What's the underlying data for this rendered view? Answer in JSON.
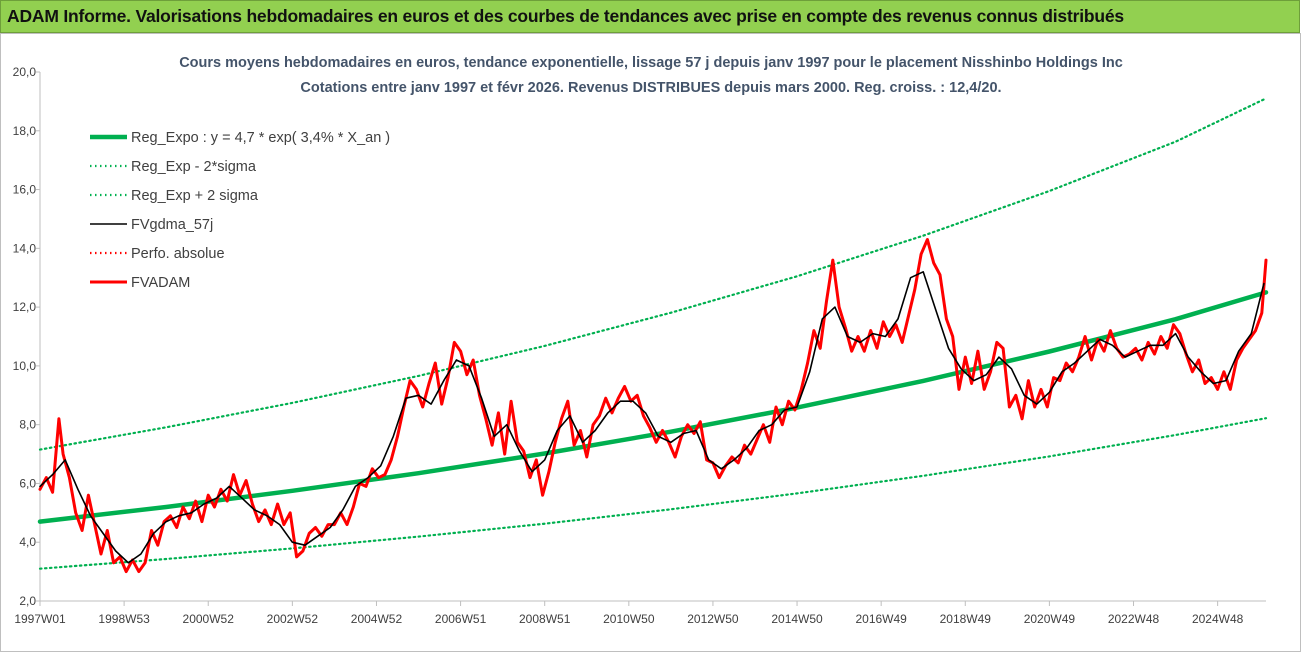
{
  "banner": {
    "title": "ADAM Informe. Valorisations hebdomadaires en euros et des courbes de tendances avec prise en compte des revenus connus distribués",
    "color": "#92d050"
  },
  "chart_data": {
    "type": "line",
    "title": "Cours moyens hebdomadaires en euros, tendance exponentielle, lissage 57 j depuis janv 1997 pour le placement Nisshinbo Holdings Inc",
    "subtitle": "Cotations entre janv 1997 et févr 2026. Revenus DISTRIBUES depuis mars 2000. Reg. croiss. : 12,4/20.",
    "xlabel": "",
    "ylabel": "",
    "x_range": [
      1997.0,
      2026.15
    ],
    "ylim": [
      2,
      20
    ],
    "y_ticks": [
      "2,0",
      "4,0",
      "6,0",
      "8,0",
      "10,0",
      "12,0",
      "14,0",
      "16,0",
      "18,0",
      "20,0"
    ],
    "x_ticks": [
      {
        "label": "1997W01",
        "x": 1997.0
      },
      {
        "label": "1998W53",
        "x": 1999.0
      },
      {
        "label": "2000W52",
        "x": 2001.0
      },
      {
        "label": "2002W52",
        "x": 2003.0
      },
      {
        "label": "2004W52",
        "x": 2005.0
      },
      {
        "label": "2006W51",
        "x": 2007.0
      },
      {
        "label": "2008W51",
        "x": 2009.0
      },
      {
        "label": "2010W50",
        "x": 2011.0
      },
      {
        "label": "2012W50",
        "x": 2013.0
      },
      {
        "label": "2014W50",
        "x": 2015.0
      },
      {
        "label": "2016W49",
        "x": 2017.0
      },
      {
        "label": "2018W49",
        "x": 2019.0
      },
      {
        "label": "2020W49",
        "x": 2021.0
      },
      {
        "label": "2022W48",
        "x": 2023.0
      },
      {
        "label": "2024W48",
        "x": 2025.0
      }
    ],
    "grid": false,
    "legend_position": "top-left",
    "series": [
      {
        "name": "Reg_Expo : y = 4,7 * exp( 3,4% *  X_an )",
        "color": "#00b050",
        "style": "solid-thick",
        "x": [
          1997.0,
          2000.0,
          2003.0,
          2006.0,
          2009.0,
          2012.0,
          2015.0,
          2018.0,
          2021.0,
          2024.0,
          2026.15
        ],
        "y": [
          4.7,
          5.2,
          5.75,
          6.35,
          7.02,
          7.76,
          8.58,
          9.49,
          10.49,
          11.59,
          12.5
        ]
      },
      {
        "name": "Reg_Exp - 2*sigma",
        "color": "#00b050",
        "style": "dotted",
        "x": [
          1997.0,
          2000.0,
          2003.0,
          2006.0,
          2009.0,
          2012.0,
          2015.0,
          2018.0,
          2021.0,
          2024.0,
          2026.15
        ],
        "y": [
          3.1,
          3.43,
          3.79,
          4.19,
          4.63,
          5.12,
          5.66,
          6.26,
          6.92,
          7.65,
          8.22
        ]
      },
      {
        "name": "Reg_Exp + 2 sigma",
        "color": "#00b050",
        "style": "dotted",
        "x": [
          1997.0,
          2000.0,
          2003.0,
          2006.0,
          2009.0,
          2012.0,
          2015.0,
          2018.0,
          2021.0,
          2024.0,
          2026.15
        ],
        "y": [
          7.15,
          7.91,
          8.74,
          9.66,
          10.68,
          11.81,
          13.05,
          14.43,
          15.95,
          17.63,
          19.1
        ]
      },
      {
        "name": "FVgdma_57j",
        "color": "#000000",
        "style": "solid",
        "x": [
          1997.0,
          1997.3,
          1997.6,
          1997.9,
          1998.2,
          1998.5,
          1998.8,
          1999.1,
          1999.4,
          1999.7,
          2000.0,
          2000.3,
          2000.6,
          2000.9,
          2001.2,
          2001.5,
          2001.8,
          2002.1,
          2002.4,
          2002.7,
          2003.0,
          2003.3,
          2003.6,
          2003.9,
          2004.2,
          2004.5,
          2004.8,
          2005.1,
          2005.4,
          2005.7,
          2006.0,
          2006.3,
          2006.6,
          2006.9,
          2007.2,
          2007.5,
          2007.8,
          2008.1,
          2008.4,
          2008.7,
          2009.0,
          2009.3,
          2009.6,
          2009.9,
          2010.2,
          2010.5,
          2010.8,
          2011.1,
          2011.4,
          2011.7,
          2012.0,
          2012.3,
          2012.6,
          2012.9,
          2013.2,
          2013.5,
          2013.8,
          2014.1,
          2014.4,
          2014.7,
          2015.0,
          2015.3,
          2015.6,
          2015.9,
          2016.2,
          2016.5,
          2016.8,
          2017.1,
          2017.4,
          2017.7,
          2018.0,
          2018.3,
          2018.6,
          2018.9,
          2019.2,
          2019.5,
          2019.8,
          2020.1,
          2020.4,
          2020.7,
          2021.0,
          2021.3,
          2021.6,
          2021.9,
          2022.2,
          2022.5,
          2022.8,
          2023.1,
          2023.4,
          2023.7,
          2024.0,
          2024.3,
          2024.6,
          2024.9,
          2025.2,
          2025.5,
          2025.8,
          2026.1
        ],
        "y": [
          5.9,
          6.3,
          6.8,
          5.8,
          4.9,
          4.3,
          3.7,
          3.3,
          3.6,
          4.3,
          4.7,
          4.9,
          5.0,
          5.3,
          5.5,
          5.9,
          5.5,
          5.1,
          4.9,
          4.6,
          4.0,
          3.9,
          4.2,
          4.5,
          5.1,
          5.9,
          6.2,
          6.6,
          7.6,
          8.9,
          9.0,
          8.7,
          9.5,
          10.2,
          10.0,
          8.9,
          7.6,
          8.0,
          7.1,
          6.4,
          6.8,
          7.8,
          8.3,
          7.4,
          7.8,
          8.4,
          8.8,
          8.8,
          8.4,
          7.6,
          7.4,
          7.7,
          7.8,
          6.8,
          6.5,
          6.8,
          7.2,
          7.8,
          8.0,
          8.5,
          8.6,
          9.8,
          11.6,
          12.0,
          11.0,
          10.8,
          11.1,
          11.0,
          11.6,
          13.0,
          13.2,
          11.9,
          10.6,
          9.9,
          9.5,
          9.7,
          10.3,
          9.9,
          9.0,
          8.7,
          9.1,
          9.8,
          10.1,
          10.5,
          10.9,
          10.7,
          10.3,
          10.5,
          10.7,
          10.7,
          11.1,
          10.3,
          9.8,
          9.4,
          9.5,
          10.5,
          11.1,
          12.8
        ]
      },
      {
        "name": "Perfo. absolue",
        "color": "#ff0000",
        "style": "dotted",
        "x": [],
        "y": []
      },
      {
        "name": "FVADAM",
        "color": "#ff0000",
        "style": "solid-thick",
        "x": [
          1997.0,
          1997.15,
          1997.3,
          1997.45,
          1997.55,
          1997.7,
          1997.85,
          1998.0,
          1998.15,
          1998.3,
          1998.45,
          1998.6,
          1998.75,
          1998.9,
          1999.05,
          1999.2,
          1999.35,
          1999.5,
          1999.65,
          1999.8,
          1999.95,
          2000.1,
          2000.25,
          2000.4,
          2000.55,
          2000.7,
          2000.85,
          2001.0,
          2001.15,
          2001.3,
          2001.45,
          2001.6,
          2001.75,
          2001.9,
          2002.05,
          2002.2,
          2002.35,
          2002.5,
          2002.65,
          2002.8,
          2002.95,
          2003.1,
          2003.25,
          2003.4,
          2003.55,
          2003.7,
          2003.85,
          2004.0,
          2004.15,
          2004.3,
          2004.45,
          2004.6,
          2004.75,
          2004.9,
          2005.05,
          2005.2,
          2005.35,
          2005.5,
          2005.65,
          2005.8,
          2005.95,
          2006.1,
          2006.25,
          2006.4,
          2006.55,
          2006.7,
          2006.85,
          2007.0,
          2007.15,
          2007.3,
          2007.45,
          2007.6,
          2007.75,
          2007.9,
          2008.05,
          2008.2,
          2008.35,
          2008.5,
          2008.65,
          2008.8,
          2008.95,
          2009.1,
          2009.25,
          2009.4,
          2009.55,
          2009.7,
          2009.85,
          2010.0,
          2010.15,
          2010.3,
          2010.45,
          2010.6,
          2010.75,
          2010.9,
          2011.05,
          2011.2,
          2011.35,
          2011.5,
          2011.65,
          2011.8,
          2011.95,
          2012.1,
          2012.25,
          2012.4,
          2012.55,
          2012.7,
          2012.85,
          2013.0,
          2013.15,
          2013.3,
          2013.45,
          2013.6,
          2013.75,
          2013.9,
          2014.05,
          2014.2,
          2014.35,
          2014.5,
          2014.65,
          2014.8,
          2014.95,
          2015.1,
          2015.25,
          2015.4,
          2015.55,
          2015.7,
          2015.85,
          2016.0,
          2016.15,
          2016.3,
          2016.45,
          2016.6,
          2016.75,
          2016.9,
          2017.05,
          2017.2,
          2017.35,
          2017.5,
          2017.65,
          2017.8,
          2017.95,
          2018.1,
          2018.25,
          2018.4,
          2018.55,
          2018.7,
          2018.85,
          2019.0,
          2019.15,
          2019.3,
          2019.45,
          2019.6,
          2019.75,
          2019.9,
          2020.05,
          2020.2,
          2020.35,
          2020.5,
          2020.65,
          2020.8,
          2020.95,
          2021.1,
          2021.25,
          2021.4,
          2021.55,
          2021.7,
          2021.85,
          2022.0,
          2022.15,
          2022.3,
          2022.45,
          2022.6,
          2022.75,
          2022.9,
          2023.05,
          2023.2,
          2023.35,
          2023.5,
          2023.65,
          2023.8,
          2023.95,
          2024.1,
          2024.25,
          2024.4,
          2024.55,
          2024.7,
          2024.85,
          2025.0,
          2025.15,
          2025.3,
          2025.45,
          2025.6,
          2025.75,
          2025.9,
          2026.05,
          2026.15
        ],
        "y": [
          5.8,
          6.2,
          5.7,
          8.2,
          7.0,
          6.2,
          5.0,
          4.4,
          5.6,
          4.6,
          3.6,
          4.4,
          3.3,
          3.5,
          3.0,
          3.4,
          3.0,
          3.3,
          4.4,
          3.9,
          4.7,
          4.9,
          4.5,
          5.2,
          4.8,
          5.4,
          4.7,
          5.6,
          5.2,
          5.8,
          5.4,
          6.3,
          5.6,
          6.1,
          5.3,
          4.7,
          5.1,
          4.6,
          5.3,
          4.6,
          5.0,
          3.5,
          3.7,
          4.3,
          4.5,
          4.2,
          4.6,
          4.6,
          5.0,
          4.6,
          5.2,
          6.0,
          5.9,
          6.5,
          6.2,
          6.3,
          6.8,
          7.6,
          8.6,
          9.5,
          9.2,
          8.6,
          9.4,
          10.1,
          8.7,
          9.6,
          10.8,
          10.5,
          9.7,
          10.2,
          9.0,
          8.2,
          7.3,
          8.4,
          7.0,
          8.8,
          7.4,
          7.1,
          6.2,
          6.8,
          5.6,
          6.4,
          7.4,
          8.2,
          8.8,
          7.3,
          7.8,
          6.9,
          8.0,
          8.3,
          8.9,
          8.4,
          8.9,
          9.3,
          8.8,
          9.0,
          8.3,
          7.9,
          7.4,
          7.8,
          7.4,
          6.9,
          7.6,
          8.0,
          7.7,
          8.1,
          6.8,
          6.7,
          6.2,
          6.6,
          6.9,
          6.7,
          7.3,
          7.0,
          7.5,
          8.0,
          7.4,
          8.6,
          8.0,
          8.8,
          8.5,
          9.2,
          10.1,
          11.2,
          10.6,
          12.2,
          13.6,
          12.0,
          11.3,
          10.5,
          11.0,
          10.5,
          11.2,
          10.6,
          11.5,
          11.0,
          11.4,
          10.8,
          11.7,
          12.6,
          13.8,
          14.3,
          13.5,
          13.1,
          11.6,
          11.0,
          9.2,
          10.3,
          9.4,
          10.5,
          9.2,
          9.8,
          10.8,
          10.6,
          8.6,
          9.0,
          8.2,
          9.5,
          8.6,
          9.2,
          8.6,
          9.6,
          9.5,
          10.1,
          9.8,
          10.3,
          11.0,
          10.2,
          10.9,
          10.5,
          11.2,
          10.6,
          10.3,
          10.4,
          10.6,
          10.2,
          10.8,
          10.4,
          11.0,
          10.6,
          11.4,
          11.1,
          10.4,
          9.8,
          10.2,
          9.4,
          9.6,
          9.2,
          9.8,
          9.2,
          10.2,
          10.6,
          10.9,
          11.2,
          11.8,
          13.6
        ]
      }
    ]
  }
}
